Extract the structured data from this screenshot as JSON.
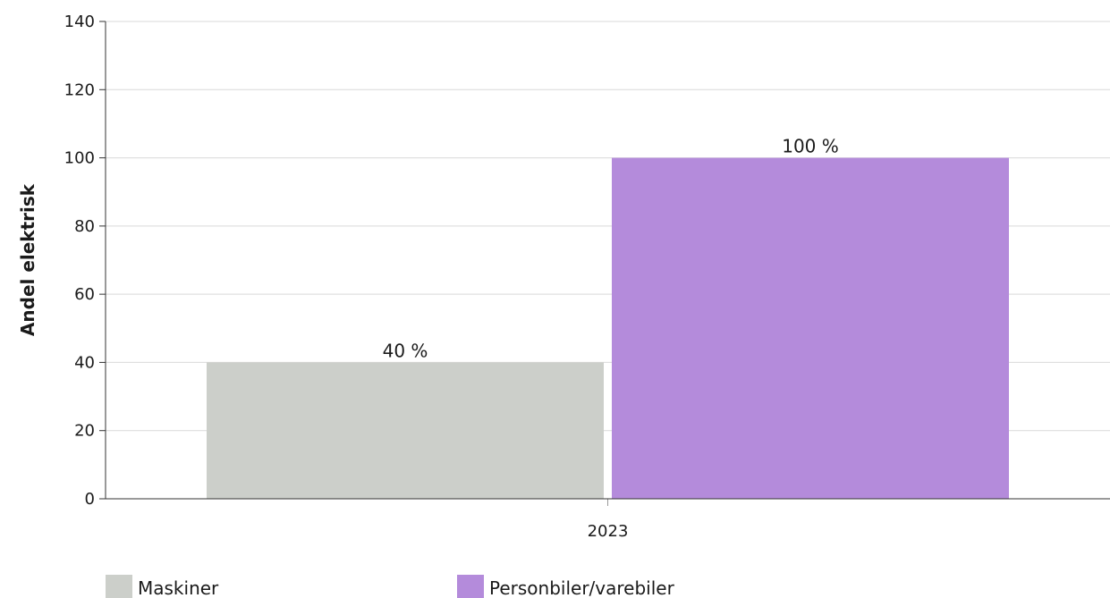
{
  "chart_data": {
    "type": "bar",
    "categories": [
      "2023"
    ],
    "series": [
      {
        "name": "Maskiner",
        "values": [
          40
        ],
        "color": "#cccfca",
        "label": "40 %"
      },
      {
        "name": "Personbiler/varebiler",
        "values": [
          100
        ],
        "color": "#b48bdb",
        "label": "100 %"
      }
    ],
    "ylabel": "Andel elektrisk",
    "xlabel": "",
    "ylim": [
      0,
      140
    ],
    "yticks": [
      0,
      20,
      40,
      60,
      80,
      100,
      120,
      140
    ],
    "grid": true,
    "legend_position": "bottom-left"
  }
}
